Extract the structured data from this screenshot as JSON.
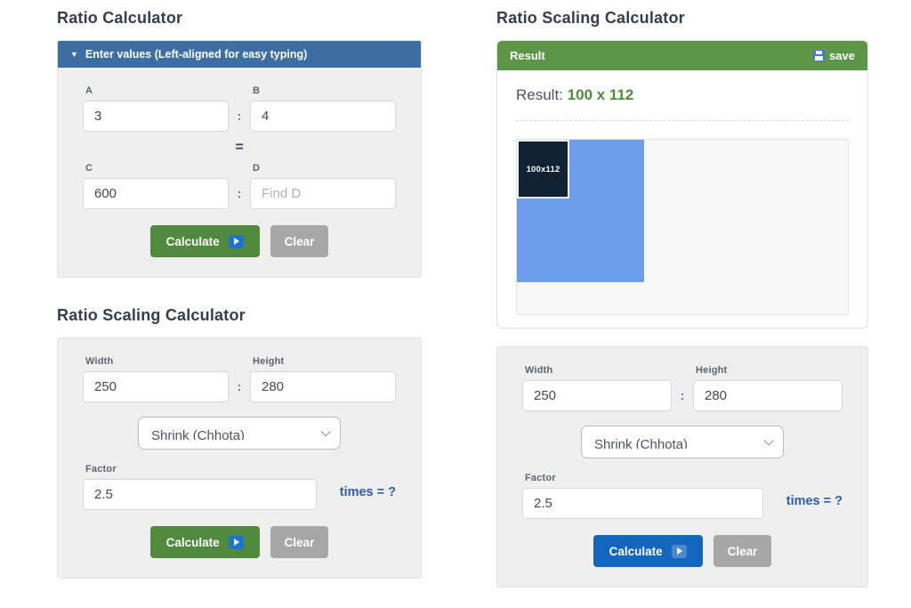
{
  "colors": {
    "header_blue": "#3d6ea3",
    "panel_green": "#5b9747",
    "button_green": "#4f8a3d",
    "button_blue": "#1266bd",
    "button_gray": "#a7a7a7",
    "times_blue": "#2b5fa7",
    "result_green": "#4e8c3c",
    "preview_blue": "#6d9eec",
    "preview_dark": "#0e2233",
    "heading_dark": "#333e52"
  },
  "shared": {
    "colon": ":",
    "equals": "=",
    "collapse_icon": "▼",
    "calculate_label": "Calculate",
    "clear_label": "Clear"
  },
  "left": {
    "ratio_calc": {
      "title": "Ratio Calculator",
      "panel_header": "Enter values (Left-aligned for easy typing)",
      "fields": {
        "a": {
          "label": "A",
          "value": "3"
        },
        "b": {
          "label": "B",
          "value": "4"
        },
        "c": {
          "label": "C",
          "value": "600"
        },
        "d": {
          "label": "D",
          "value": "",
          "placeholder": "Find D"
        }
      }
    },
    "scaling_calc": {
      "title": "Ratio Scaling Calculator",
      "width": {
        "label": "Width",
        "value": "250"
      },
      "height": {
        "label": "Height",
        "value": "280"
      },
      "mode_select": {
        "value": "Shrink (Chhota)"
      },
      "factor": {
        "label": "Factor",
        "value": "2.5"
      },
      "times_text": "times = ?"
    }
  },
  "right": {
    "title": "Ratio Scaling Calculator",
    "result_card": {
      "header": "Result",
      "save_label": "save",
      "result_label": "Result:",
      "result_value": "100 x 112",
      "preview_box_label": "100x112"
    },
    "scaling_form": {
      "width": {
        "label": "Width",
        "value": "250"
      },
      "height": {
        "label": "Height",
        "value": "280"
      },
      "mode_select": {
        "value": "Shrink (Chhota)"
      },
      "factor": {
        "label": "Factor",
        "value": "2.5"
      },
      "times_text": "times = ?"
    }
  }
}
